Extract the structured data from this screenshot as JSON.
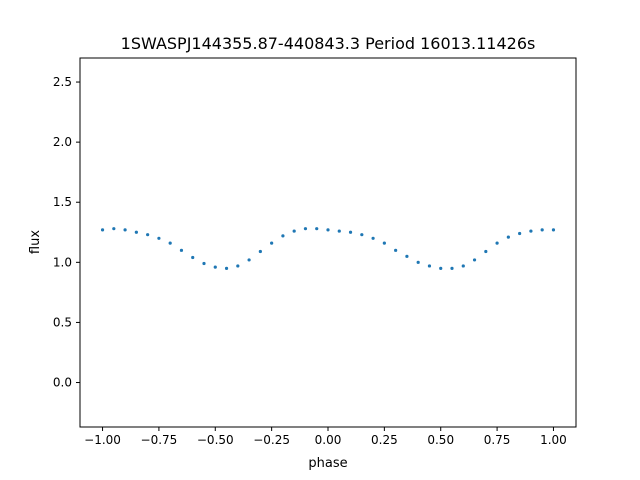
{
  "chart_data": {
    "type": "scatter",
    "title": "1SWASPJ144355.87-440843.3 Period 16013.11426s",
    "xlabel": "phase",
    "ylabel": "flux",
    "xlim": [
      -1.1,
      1.1
    ],
    "ylim": [
      -0.37,
      2.7
    ],
    "xticks": [
      -1.0,
      -0.75,
      -0.5,
      -0.25,
      0.0,
      0.25,
      0.5,
      0.75,
      1.0
    ],
    "xtick_labels": [
      "−1.00",
      "−0.75",
      "−0.50",
      "−0.25",
      "0.00",
      "0.25",
      "0.50",
      "0.75",
      "1.00"
    ],
    "yticks": [
      0.0,
      0.5,
      1.0,
      1.5,
      2.0,
      2.5
    ],
    "ytick_labels": [
      "0.0",
      "0.5",
      "1.0",
      "1.5",
      "2.0",
      "2.5"
    ],
    "grid": false,
    "legend": "none",
    "point_color": "#1f77b4",
    "series": [
      {
        "x": [
          -1.0,
          -0.95,
          -0.9,
          -0.85,
          -0.8,
          -0.75,
          -0.7,
          -0.65,
          -0.6,
          -0.55,
          -0.5,
          -0.45,
          -0.4,
          -0.35,
          -0.3,
          -0.25,
          -0.2,
          -0.15,
          -0.1,
          -0.05,
          0.0,
          0.05,
          0.1,
          0.15,
          0.2,
          0.25,
          0.3,
          0.35,
          0.4,
          0.45,
          0.5,
          0.55,
          0.6,
          0.65,
          0.7,
          0.75,
          0.8,
          0.85,
          0.9,
          0.95,
          1.0
        ],
        "y": [
          1.27,
          1.28,
          1.27,
          1.25,
          1.23,
          1.2,
          1.16,
          1.1,
          1.04,
          0.99,
          0.96,
          0.95,
          0.97,
          1.02,
          1.09,
          1.16,
          1.22,
          1.26,
          1.28,
          1.28,
          1.27,
          1.26,
          1.25,
          1.23,
          1.2,
          1.16,
          1.1,
          1.05,
          1.0,
          0.97,
          0.95,
          0.95,
          0.97,
          1.02,
          1.09,
          1.16,
          1.21,
          1.24,
          1.26,
          1.27,
          1.27
        ]
      }
    ]
  }
}
